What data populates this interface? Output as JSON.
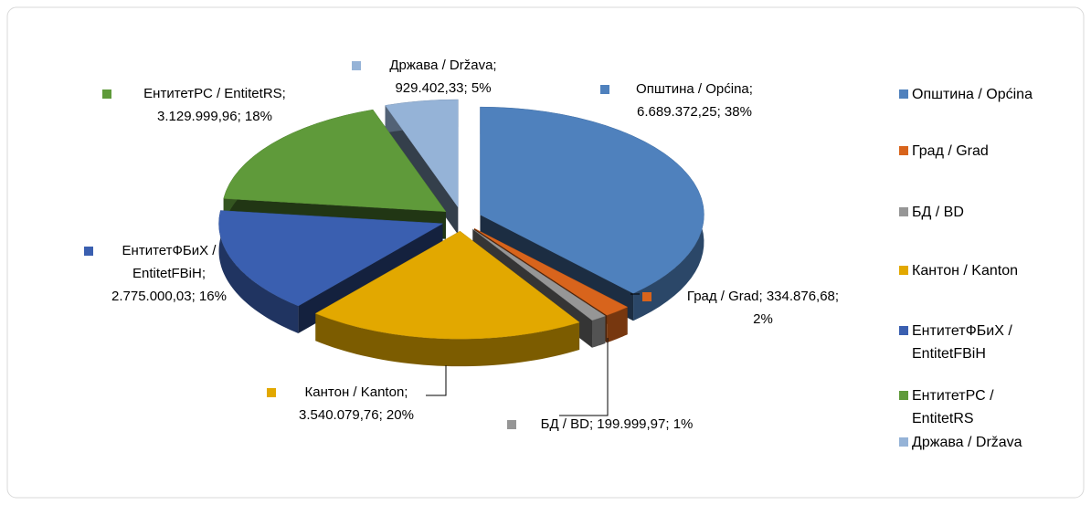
{
  "chart_data": {
    "type": "pie3d",
    "categories": [
      "Општина / Općina",
      "Град / Grad",
      "БД / BD",
      "Кантон / Kanton",
      "ЕнтитетФБиХ / EntitetFBiH",
      "ЕнтитетРС / EntitetRS",
      "Држава / Država"
    ],
    "values": [
      6689372.25,
      334876.68,
      199999.97,
      3540079.76,
      2775000.03,
      3129999.96,
      929402.33
    ],
    "colors": [
      "#4f81bd",
      "#d8641c",
      "#969696",
      "#e2a800",
      "#3a5fb0",
      "#5f9a3a",
      "#95b3d7"
    ],
    "data_labels": [
      [
        "Општина / Općina;",
        "6.689.372,25; 38%"
      ],
      [
        "Град / Grad; 334.876,68;",
        "2%"
      ],
      [
        "БД / BD; 199.999,97; 1%"
      ],
      [
        "Кантон / Kanton;",
        "3.540.079,76; 20%"
      ],
      [
        "ЕнтитетФБиХ /",
        "EntitetFBiH;",
        "2.775.000,03; 16%"
      ],
      [
        "ЕнтитетРС / EntitetRS;",
        "3.129.999,96; 18%"
      ],
      [
        "Држава / Država;",
        "929.402,33; 5%"
      ]
    ],
    "legend": "right"
  }
}
